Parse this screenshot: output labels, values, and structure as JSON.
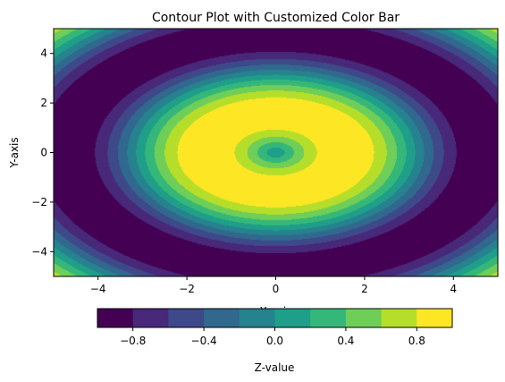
{
  "chart_data": {
    "type": "heatmap",
    "subtype": "filled-contour",
    "title": "Contour Plot with Customized Color Bar",
    "xlabel": "X-axis",
    "ylabel": "Y-axis",
    "xlim": [
      -5,
      5
    ],
    "ylim": [
      -5,
      5
    ],
    "x_ticks": [
      -4,
      -2,
      0,
      2,
      4
    ],
    "y_ticks": [
      -4,
      -2,
      0,
      2,
      4
    ],
    "x_tick_labels": [
      "−4",
      "−2",
      "0",
      "2",
      "4"
    ],
    "y_tick_labels": [
      "−4",
      "−2",
      "0",
      "2",
      "4"
    ],
    "function": "z = sin(sqrt(x^2 + y^2))",
    "grid": false,
    "colorbar": {
      "orientation": "horizontal",
      "placement": "bottom",
      "label": "Z-value",
      "levels": [
        -1.0,
        -0.8,
        -0.6,
        -0.4,
        -0.2,
        0.0,
        0.2,
        0.4,
        0.6,
        0.8,
        1.0
      ],
      "ticks": [
        -0.8,
        -0.4,
        0.0,
        0.4,
        0.8
      ],
      "tick_labels": [
        "−0.8",
        "−0.4",
        "0.0",
        "0.4",
        "0.8"
      ]
    },
    "colors": [
      "#440154",
      "#482878",
      "#3e4989",
      "#31688e",
      "#26828e",
      "#1f9e89",
      "#35b779",
      "#6ece58",
      "#b5de2b",
      "#fde725"
    ],
    "colormap": "viridis"
  }
}
